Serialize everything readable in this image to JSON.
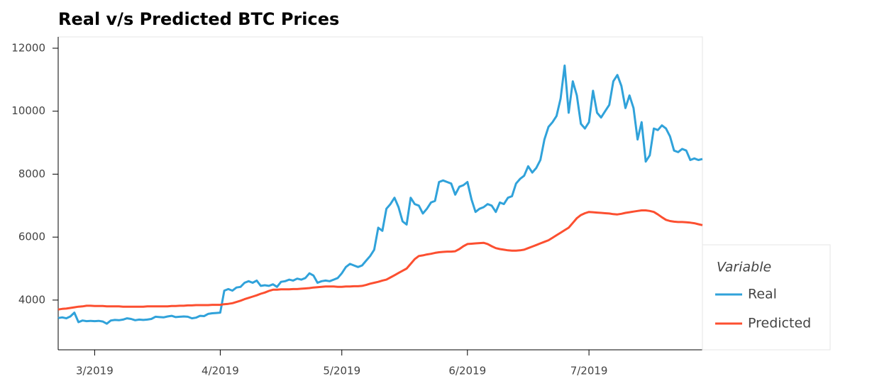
{
  "chart_data": {
    "type": "line",
    "title": "Real v/s Predicted BTC Prices",
    "legend_title": "Variable",
    "legend": "right",
    "categories": [
      null,
      null,
      null,
      null,
      null,
      null,
      null,
      null,
      null,
      "3/2019",
      null,
      null,
      null,
      null,
      null,
      null,
      null,
      null,
      null,
      null,
      null,
      null,
      null,
      null,
      null,
      null,
      null,
      null,
      null,
      null,
      null,
      null,
      null,
      null,
      null,
      null,
      null,
      null,
      null,
      null,
      "4/2019",
      null,
      null,
      null,
      null,
      null,
      null,
      null,
      null,
      null,
      null,
      null,
      null,
      null,
      null,
      null,
      null,
      null,
      null,
      null,
      null,
      null,
      null,
      null,
      null,
      null,
      null,
      null,
      null,
      null,
      "5/2019",
      null,
      null,
      null,
      null,
      null,
      null,
      null,
      null,
      null,
      null,
      null,
      null,
      null,
      null,
      null,
      null,
      null,
      null,
      null,
      null,
      null,
      null,
      null,
      null,
      null,
      null,
      null,
      null,
      null,
      null,
      "6/2019",
      null,
      null,
      null,
      null,
      null,
      null,
      null,
      null,
      null,
      null,
      null,
      null,
      null,
      null,
      null,
      null,
      null,
      null,
      null,
      null,
      null,
      null,
      null,
      null,
      null,
      null,
      null,
      null,
      null,
      "7/2019",
      null,
      null,
      null,
      null,
      null,
      null,
      null,
      null,
      null,
      null,
      null,
      null,
      null,
      null,
      null,
      null,
      null,
      null,
      null,
      null,
      null,
      null,
      null,
      null,
      null,
      null,
      null,
      null
    ],
    "series": [
      {
        "name": "Real",
        "color": "#30a2da",
        "values": [
          3430,
          3450,
          3420,
          3480,
          3600,
          3300,
          3350,
          3330,
          3340,
          3330,
          3340,
          3320,
          3250,
          3350,
          3370,
          3360,
          3380,
          3420,
          3400,
          3360,
          3380,
          3370,
          3380,
          3400,
          3470,
          3460,
          3450,
          3480,
          3500,
          3460,
          3470,
          3480,
          3470,
          3420,
          3440,
          3500,
          3490,
          3560,
          3580,
          3590,
          3600,
          4300,
          4350,
          4300,
          4400,
          4420,
          4550,
          4600,
          4550,
          4620,
          4450,
          4470,
          4450,
          4500,
          4420,
          4580,
          4600,
          4650,
          4620,
          4680,
          4650,
          4700,
          4850,
          4780,
          4550,
          4600,
          4620,
          4600,
          4650,
          4700,
          4850,
          5050,
          5150,
          5100,
          5050,
          5100,
          5250,
          5400,
          5600,
          6300,
          6200,
          6900,
          7050,
          7250,
          6950,
          6500,
          6400,
          7250,
          7050,
          7000,
          6750,
          6900,
          7100,
          7150,
          7750,
          7800,
          7750,
          7700,
          7350,
          7600,
          7650,
          7750,
          7200,
          6800,
          6900,
          6950,
          7050,
          7000,
          6800,
          7100,
          7050,
          7250,
          7300,
          7700,
          7850,
          7950,
          8250,
          8050,
          8200,
          8450,
          9100,
          9500,
          9650,
          9850,
          10400,
          11450,
          9950,
          10950,
          10500,
          9600,
          9450,
          9650,
          10650,
          9950,
          9800,
          10000,
          10200,
          10950,
          11150,
          10800,
          10100,
          10500,
          10100,
          9100,
          9650,
          8400,
          8600,
          9450,
          9400,
          9550,
          9450,
          9200,
          8750,
          8700,
          8800,
          8750,
          8450,
          8500,
          8450,
          8480
        ]
      },
      {
        "name": "Predicted",
        "color": "#fc4f30",
        "values": [
          3700,
          3720,
          3730,
          3750,
          3770,
          3790,
          3800,
          3820,
          3820,
          3810,
          3810,
          3810,
          3800,
          3800,
          3800,
          3800,
          3790,
          3790,
          3790,
          3790,
          3790,
          3790,
          3800,
          3800,
          3800,
          3800,
          3800,
          3800,
          3810,
          3810,
          3820,
          3820,
          3830,
          3830,
          3840,
          3840,
          3840,
          3840,
          3850,
          3850,
          3850,
          3870,
          3880,
          3900,
          3940,
          3980,
          4030,
          4070,
          4110,
          4150,
          4200,
          4240,
          4290,
          4330,
          4330,
          4340,
          4340,
          4340,
          4350,
          4350,
          4360,
          4370,
          4380,
          4400,
          4410,
          4420,
          4430,
          4430,
          4430,
          4420,
          4420,
          4430,
          4430,
          4440,
          4440,
          4450,
          4480,
          4520,
          4550,
          4580,
          4620,
          4650,
          4720,
          4790,
          4860,
          4930,
          5000,
          5150,
          5300,
          5400,
          5420,
          5450,
          5470,
          5500,
          5520,
          5530,
          5540,
          5540,
          5550,
          5620,
          5710,
          5780,
          5790,
          5800,
          5810,
          5820,
          5780,
          5710,
          5650,
          5620,
          5600,
          5580,
          5570,
          5570,
          5580,
          5600,
          5650,
          5700,
          5750,
          5800,
          5850,
          5900,
          5980,
          6060,
          6140,
          6220,
          6300,
          6450,
          6600,
          6700,
          6760,
          6800,
          6790,
          6780,
          6770,
          6760,
          6750,
          6730,
          6720,
          6740,
          6770,
          6790,
          6810,
          6830,
          6850,
          6850,
          6830,
          6800,
          6720,
          6630,
          6550,
          6510,
          6490,
          6480,
          6480,
          6470,
          6460,
          6440,
          6410,
          6380
        ]
      }
    ],
    "ylim": [
      2420,
      12360
    ],
    "yticks": [
      4000,
      6000,
      8000,
      10000,
      12000
    ],
    "grid": false
  }
}
